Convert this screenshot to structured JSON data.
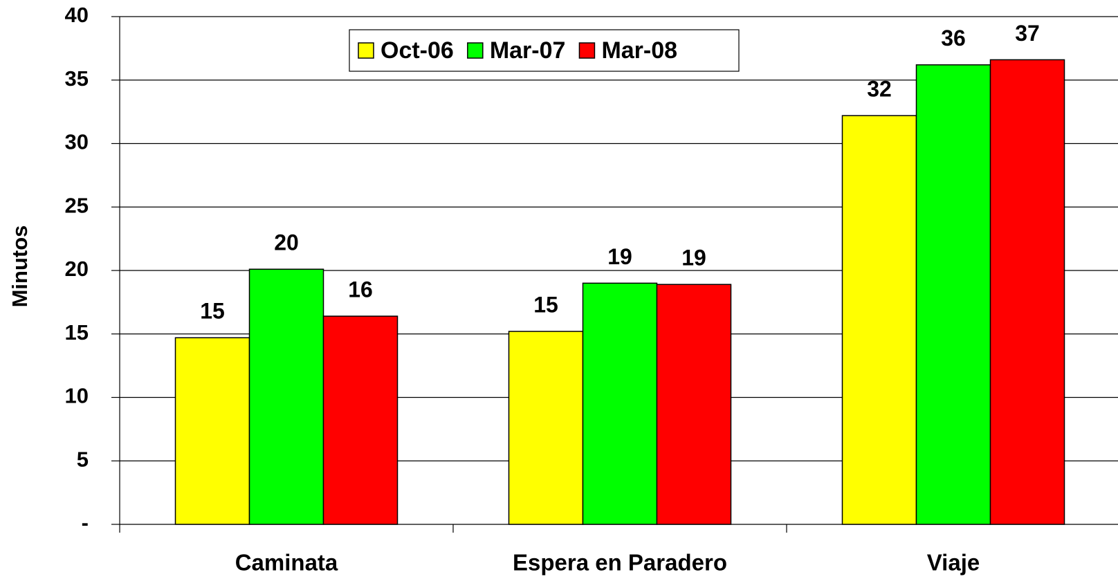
{
  "chart_data": {
    "type": "bar",
    "y_label": "Minutos",
    "categories": [
      "Caminata",
      "Espera en Paradero",
      "Viaje"
    ],
    "series": [
      {
        "name": "Oct-06",
        "color": "#ffff00",
        "values": [
          14.7,
          15.2,
          32.2
        ],
        "value_labels": [
          "15",
          "15",
          "32"
        ]
      },
      {
        "name": "Mar-07",
        "color": "#00ff00",
        "values": [
          20.1,
          19.0,
          36.2
        ],
        "value_labels": [
          "20",
          "19",
          "36"
        ]
      },
      {
        "name": "Mar-08",
        "color": "#ff0000",
        "values": [
          16.4,
          18.9,
          36.6
        ],
        "value_labels": [
          "16",
          "19",
          "37"
        ]
      }
    ],
    "ylim": [
      0,
      40
    ],
    "yticks": [
      {
        "value": 0,
        "label": "-"
      },
      5,
      10,
      15,
      20,
      25,
      30,
      35,
      40
    ],
    "grid": true
  }
}
